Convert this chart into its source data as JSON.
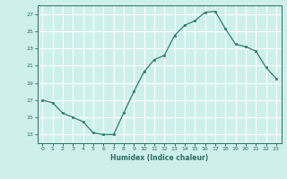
{
  "x": [
    0,
    1,
    2,
    3,
    4,
    5,
    6,
    7,
    8,
    9,
    10,
    11,
    12,
    13,
    14,
    15,
    16,
    17,
    18,
    19,
    20,
    21,
    22,
    23
  ],
  "y": [
    17.0,
    16.7,
    15.5,
    15.0,
    14.5,
    13.2,
    13.0,
    13.0,
    15.5,
    18.0,
    20.3,
    21.7,
    22.2,
    24.5,
    25.7,
    26.2,
    27.2,
    27.3,
    25.3,
    23.5,
    23.2,
    22.7,
    20.8,
    19.5
  ],
  "xlabel": "Humidex (Indice chaleur)",
  "xlim": [
    -0.5,
    23.5
  ],
  "ylim": [
    12.0,
    28.0
  ],
  "yticks": [
    13,
    15,
    17,
    19,
    21,
    23,
    25,
    27
  ],
  "xticks": [
    0,
    1,
    2,
    3,
    4,
    5,
    6,
    7,
    8,
    9,
    10,
    11,
    12,
    13,
    14,
    15,
    16,
    17,
    18,
    19,
    20,
    21,
    22,
    23
  ],
  "line_color": "#2e7d6e",
  "marker_color": "#2e7d6e",
  "bg_color": "#cef0ea",
  "grid_color": "#ffffff",
  "text_color": "#2e6e62"
}
